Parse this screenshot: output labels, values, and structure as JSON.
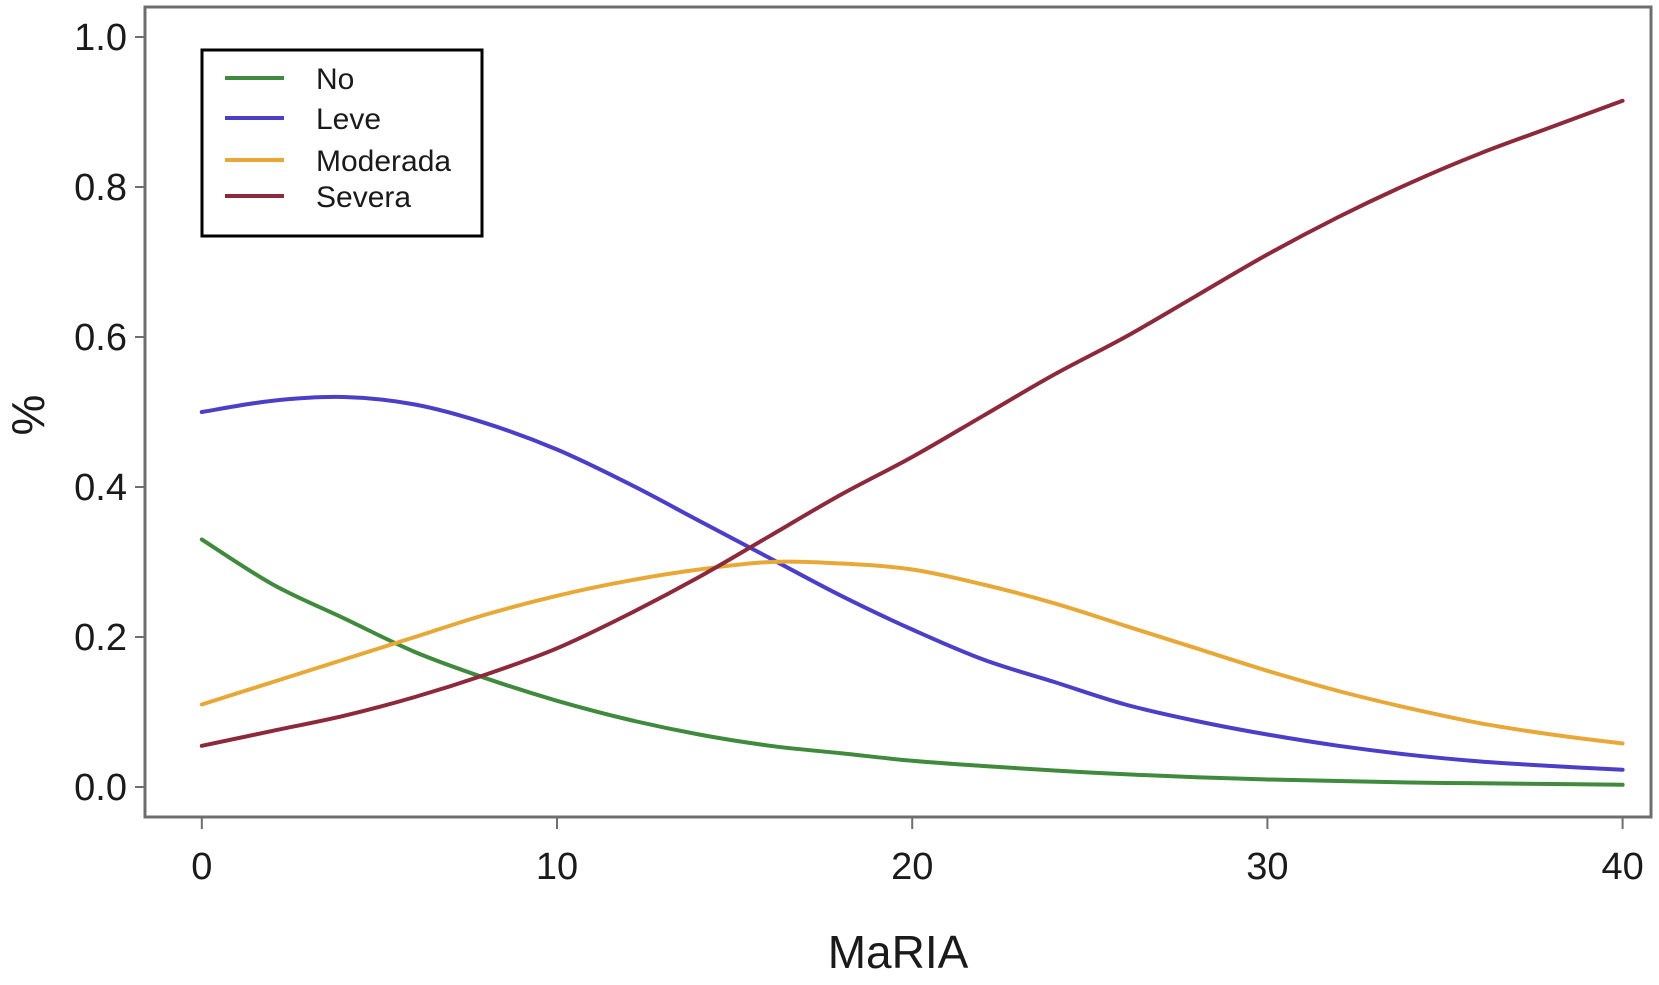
{
  "chart_data": {
    "type": "line",
    "title": "",
    "xlabel": "MaRIA",
    "ylabel": "%",
    "xlim": [
      -1.6,
      40.8
    ],
    "ylim": [
      -0.04,
      1.04
    ],
    "x_ticks": [
      0,
      10,
      20,
      30,
      40
    ],
    "x_tick_labels": [
      "0",
      "10",
      "20",
      "30",
      "40"
    ],
    "y_ticks": [
      0.0,
      0.2,
      0.4,
      0.6,
      0.8,
      1.0
    ],
    "y_tick_labels": [
      "0.0",
      "0.2",
      "0.4",
      "0.6",
      "0.8",
      "1.0"
    ],
    "grid": false,
    "legend_position": "top-left",
    "x": [
      0,
      2,
      4,
      6,
      8,
      10,
      12,
      14,
      16,
      18,
      20,
      22,
      24,
      26,
      28,
      30,
      32,
      34,
      36,
      38,
      40
    ],
    "series": [
      {
        "name": "No",
        "color": "#3f8a3c",
        "values": [
          0.33,
          0.27,
          0.225,
          0.18,
          0.145,
          0.115,
          0.09,
          0.07,
          0.055,
          0.045,
          0.035,
          0.028,
          0.022,
          0.017,
          0.013,
          0.01,
          0.008,
          0.006,
          0.005,
          0.004,
          0.003
        ]
      },
      {
        "name": "Leve",
        "color": "#4b3fc8",
        "values": [
          0.5,
          0.515,
          0.52,
          0.51,
          0.485,
          0.45,
          0.405,
          0.355,
          0.305,
          0.255,
          0.21,
          0.17,
          0.14,
          0.11,
          0.088,
          0.07,
          0.055,
          0.043,
          0.034,
          0.028,
          0.023
        ]
      },
      {
        "name": "Moderada",
        "color": "#e8a838",
        "values": [
          0.11,
          0.14,
          0.17,
          0.2,
          0.23,
          0.255,
          0.275,
          0.29,
          0.3,
          0.298,
          0.29,
          0.27,
          0.245,
          0.215,
          0.185,
          0.155,
          0.128,
          0.105,
          0.085,
          0.07,
          0.058
        ]
      },
      {
        "name": "Severa",
        "color": "#8c2a3c",
        "values": [
          0.055,
          0.075,
          0.095,
          0.12,
          0.15,
          0.185,
          0.23,
          0.28,
          0.335,
          0.39,
          0.44,
          0.495,
          0.55,
          0.6,
          0.655,
          0.71,
          0.76,
          0.805,
          0.845,
          0.88,
          0.915
        ]
      }
    ]
  }
}
